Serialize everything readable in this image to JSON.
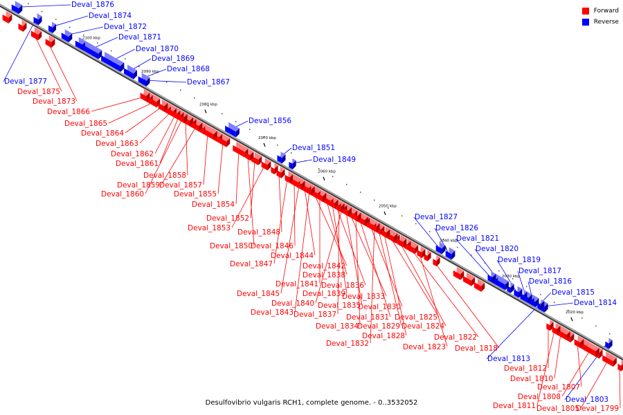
{
  "caption": "Desulfovibrio vulgaris RCH1, complete genome. - 0..3532052",
  "legend": [
    {
      "label": "Forward",
      "color": "#ff0000"
    },
    {
      "label": "Reverse",
      "color": "#0000ff"
    }
  ],
  "colors": {
    "forward": "#ff0000",
    "reverse": "#0000ff",
    "axis": "#555555"
  },
  "kbp_marks": [
    "2100 kbp",
    "2090 kbp",
    "2080 kbp",
    "2070 kbp",
    "2060 kbp",
    "2050 kbp",
    "2040 kbp",
    "2030 kbp",
    "2020 kbp"
  ],
  "genes": [
    {
      "name": "Deval_1876",
      "strand": "reverse"
    },
    {
      "name": "Deval_1874",
      "strand": "reverse"
    },
    {
      "name": "Deval_1872",
      "strand": "reverse"
    },
    {
      "name": "Deval_1871",
      "strand": "reverse"
    },
    {
      "name": "Deval_1870",
      "strand": "reverse"
    },
    {
      "name": "Deval_1869",
      "strand": "reverse"
    },
    {
      "name": "Deval_1868",
      "strand": "reverse"
    },
    {
      "name": "Deval_1867",
      "strand": "reverse"
    },
    {
      "name": "Deval_1877",
      "strand": "reverse"
    },
    {
      "name": "Deval_1875",
      "strand": "forward"
    },
    {
      "name": "Deval_1873",
      "strand": "forward"
    },
    {
      "name": "Deval_1866",
      "strand": "forward"
    },
    {
      "name": "Deval_1865",
      "strand": "forward"
    },
    {
      "name": "Deval_1864",
      "strand": "forward"
    },
    {
      "name": "Deval_1863",
      "strand": "forward"
    },
    {
      "name": "Deval_1862",
      "strand": "forward"
    },
    {
      "name": "Deval_1861",
      "strand": "forward"
    },
    {
      "name": "Deval_1858",
      "strand": "forward"
    },
    {
      "name": "Deval_1859",
      "strand": "forward"
    },
    {
      "name": "Deval_1857",
      "strand": "forward"
    },
    {
      "name": "Deval_1860",
      "strand": "forward"
    },
    {
      "name": "Deval_1855",
      "strand": "forward"
    },
    {
      "name": "Deval_1856",
      "strand": "reverse"
    },
    {
      "name": "Deval_1851",
      "strand": "reverse"
    },
    {
      "name": "Deval_1849",
      "strand": "reverse"
    },
    {
      "name": "Deval_1854",
      "strand": "forward"
    },
    {
      "name": "Deval_1852",
      "strand": "forward"
    },
    {
      "name": "Deval_1853",
      "strand": "forward"
    },
    {
      "name": "Deval_1848",
      "strand": "forward"
    },
    {
      "name": "Deval_1850",
      "strand": "forward"
    },
    {
      "name": "Deval_1846",
      "strand": "forward"
    },
    {
      "name": "Deval_1844",
      "strand": "forward"
    },
    {
      "name": "Deval_1847",
      "strand": "forward"
    },
    {
      "name": "Deval_1842",
      "strand": "forward"
    },
    {
      "name": "Deval_1838",
      "strand": "forward"
    },
    {
      "name": "Deval_1841",
      "strand": "forward"
    },
    {
      "name": "Deval_1836",
      "strand": "forward"
    },
    {
      "name": "Deval_1845",
      "strand": "forward"
    },
    {
      "name": "Deval_1839",
      "strand": "forward"
    },
    {
      "name": "Deval_1833",
      "strand": "forward"
    },
    {
      "name": "Deval_1840",
      "strand": "forward"
    },
    {
      "name": "Deval_1835",
      "strand": "forward"
    },
    {
      "name": "Deval_1830",
      "strand": "forward"
    },
    {
      "name": "Deval_1843",
      "strand": "forward"
    },
    {
      "name": "Deval_1837",
      "strand": "forward"
    },
    {
      "name": "Deval_1831",
      "strand": "forward"
    },
    {
      "name": "Deval_1825",
      "strand": "forward"
    },
    {
      "name": "Deval_1834",
      "strand": "forward"
    },
    {
      "name": "Deval_1829",
      "strand": "forward"
    },
    {
      "name": "Deval_1824",
      "strand": "forward"
    },
    {
      "name": "Deval_1828",
      "strand": "forward"
    },
    {
      "name": "Deval_1822",
      "strand": "forward"
    },
    {
      "name": "Deval_1832",
      "strand": "forward"
    },
    {
      "name": "Deval_1823",
      "strand": "forward"
    },
    {
      "name": "Deval_1818",
      "strand": "forward"
    },
    {
      "name": "Deval_1827",
      "strand": "reverse"
    },
    {
      "name": "Deval_1826",
      "strand": "reverse"
    },
    {
      "name": "Deval_1821",
      "strand": "reverse"
    },
    {
      "name": "Deval_1820",
      "strand": "reverse"
    },
    {
      "name": "Deval_1819",
      "strand": "reverse"
    },
    {
      "name": "Deval_1817",
      "strand": "reverse"
    },
    {
      "name": "Deval_1816",
      "strand": "reverse"
    },
    {
      "name": "Deval_1815",
      "strand": "reverse"
    },
    {
      "name": "Deval_1814",
      "strand": "reverse"
    },
    {
      "name": "Deval_1813",
      "strand": "reverse"
    },
    {
      "name": "Deval_1812",
      "strand": "forward"
    },
    {
      "name": "Deval_1810",
      "strand": "forward"
    },
    {
      "name": "Deval_1807",
      "strand": "forward"
    },
    {
      "name": "Deval_1808",
      "strand": "forward"
    },
    {
      "name": "Deval_1811",
      "strand": "forward"
    },
    {
      "name": "Deval_1805",
      "strand": "forward"
    },
    {
      "name": "Deval_1803",
      "strand": "reverse"
    },
    {
      "name": "Deval_1799",
      "strand": "forward"
    }
  ]
}
